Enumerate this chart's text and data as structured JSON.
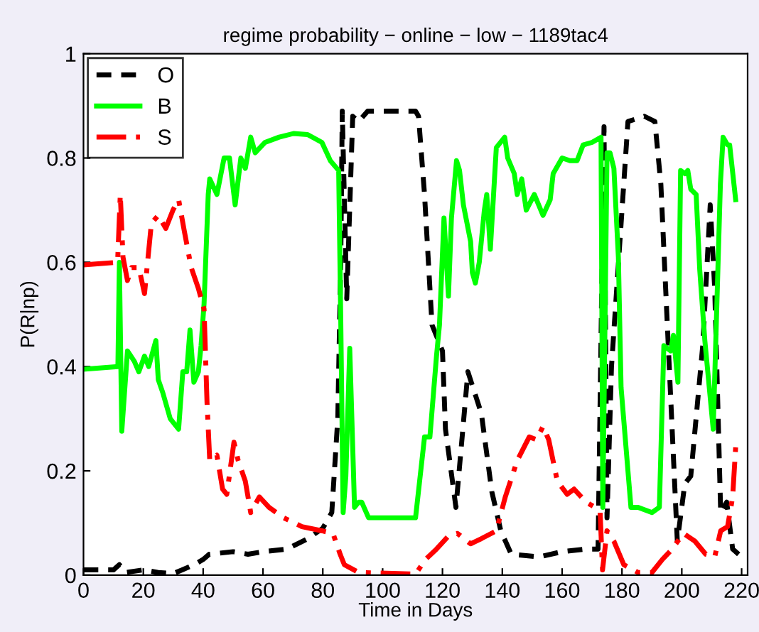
{
  "chart_data": {
    "type": "line",
    "title": "regime probability − online − low − 1189tac4",
    "xlabel": "Time in Days",
    "ylabel": "P(R|np)",
    "xlim": [
      0,
      222
    ],
    "ylim": [
      0,
      1
    ],
    "xticks": [
      0,
      20,
      40,
      60,
      80,
      100,
      120,
      140,
      160,
      180,
      200,
      220
    ],
    "yticks": [
      0,
      0.2,
      0.4,
      0.6,
      0.8,
      1
    ],
    "grid": false,
    "legend": "top left",
    "series": [
      {
        "name": "O",
        "color": "#000000",
        "line_style": "dashed",
        "x": [
          0,
          10,
          12,
          14,
          20,
          25,
          30,
          33,
          37,
          40,
          42,
          50,
          55,
          60,
          68,
          75,
          80,
          83,
          85,
          86,
          86.5,
          88,
          90,
          92,
          95,
          111,
          112,
          114,
          116.5,
          120,
          121,
          124.5,
          128.5,
          133,
          136.5,
          139.5,
          143,
          152.5,
          160,
          168,
          172,
          174,
          175,
          176.5,
          182,
          187.5,
          191,
          193,
          195,
          198.5,
          201,
          203,
          207,
          209.5,
          211,
          213,
          215,
          217,
          219
        ],
        "values": [
          0.01,
          0.01,
          0.02,
          0.005,
          0.01,
          0.005,
          0.003,
          0.01,
          0.02,
          0.03,
          0.04,
          0.045,
          0.04,
          0.045,
          0.05,
          0.07,
          0.09,
          0.12,
          0.3,
          0.6,
          0.89,
          0.53,
          0.88,
          0.87,
          0.89,
          0.89,
          0.88,
          0.73,
          0.48,
          0.43,
          0.28,
          0.13,
          0.39,
          0.31,
          0.16,
          0.085,
          0.04,
          0.035,
          0.045,
          0.05,
          0.05,
          0.86,
          0.11,
          0.4,
          0.87,
          0.88,
          0.87,
          0.75,
          0.5,
          0.065,
          0.175,
          0.19,
          0.44,
          0.71,
          0.55,
          0.12,
          0.14,
          0.05,
          0.04
        ]
      },
      {
        "name": "B",
        "color": "#00ff00",
        "line_style": "solid",
        "x": [
          0,
          11.5,
          12,
          12.8,
          14.7,
          17,
          18.5,
          20.4,
          21.8,
          24.2,
          25,
          26.5,
          29,
          31.8,
          33.2,
          34.5,
          35.6,
          36.9,
          38.4,
          39.3,
          40.3,
          41.7,
          42.2,
          44.6,
          47,
          48.8,
          50.7,
          52.6,
          54.1,
          55.9,
          57.4,
          60.7,
          65.4,
          70.2,
          74.9,
          79.7,
          82.5,
          85.3,
          86,
          86.8,
          87.7,
          89,
          90.6,
          92,
          93,
          95.3,
          111,
          114,
          115.8,
          118,
          119,
          120.5,
          122,
          123,
          124.7,
          125.7,
          127,
          129.4,
          130,
          131,
          132.3,
          134,
          134.8,
          136,
          138,
          140.8,
          141.8,
          144,
          145,
          146.5,
          148,
          150.7,
          153.6,
          156,
          157,
          160,
          162.6,
          165,
          167,
          170,
          173,
          173.6,
          175,
          176,
          177.3,
          178.8,
          179.7,
          183,
          185.4,
          190,
          192.5,
          194,
          196.3,
          197.2,
          198.7,
          199.6,
          201,
          202,
          203,
          204.8,
          206,
          207.7,
          210.5,
          212.9,
          213.8,
          215.3,
          216,
          218
        ],
        "values": [
          0.395,
          0.4,
          0.6,
          0.276,
          0.43,
          0.41,
          0.39,
          0.42,
          0.4,
          0.45,
          0.375,
          0.35,
          0.3,
          0.28,
          0.39,
          0.39,
          0.47,
          0.37,
          0.39,
          0.44,
          0.52,
          0.73,
          0.76,
          0.73,
          0.8,
          0.8,
          0.71,
          0.8,
          0.78,
          0.84,
          0.81,
          0.83,
          0.84,
          0.847,
          0.845,
          0.83,
          0.795,
          0.776,
          0.49,
          0.12,
          0.19,
          0.435,
          0.13,
          0.14,
          0.14,
          0.11,
          0.11,
          0.265,
          0.265,
          0.42,
          0.48,
          0.685,
          0.535,
          0.685,
          0.795,
          0.776,
          0.71,
          0.64,
          0.58,
          0.56,
          0.6,
          0.7,
          0.73,
          0.625,
          0.82,
          0.84,
          0.8,
          0.77,
          0.73,
          0.76,
          0.7,
          0.73,
          0.69,
          0.72,
          0.77,
          0.8,
          0.795,
          0.795,
          0.825,
          0.83,
          0.84,
          0.13,
          0.81,
          0.81,
          0.78,
          0.61,
          0.36,
          0.13,
          0.13,
          0.12,
          0.13,
          0.44,
          0.43,
          0.46,
          0.37,
          0.776,
          0.77,
          0.776,
          0.74,
          0.73,
          0.585,
          0.45,
          0.28,
          0.75,
          0.84,
          0.825,
          0.825,
          0.72
        ]
      },
      {
        "name": "S",
        "color": "#ff0000",
        "line_style": "dashdot",
        "x": [
          0,
          11.4,
          12.3,
          13.2,
          14.7,
          16.1,
          18.5,
          20.4,
          22.7,
          25,
          27.5,
          29.9,
          31.8,
          33.7,
          36,
          38.4,
          40.3,
          41.3,
          42.2,
          44.6,
          46.5,
          47.9,
          50.3,
          51.7,
          54.1,
          55.9,
          58.8,
          62,
          66.9,
          73,
          79.7,
          83.4,
          85.8,
          87.2,
          92,
          111,
          114.3,
          118,
          122,
          125,
          129.4,
          133,
          138,
          141,
          145,
          149,
          151.4,
          153.6,
          155.5,
          158.4,
          161.7,
          164,
          168,
          171,
          172.7,
          173.5,
          175,
          177.3,
          180.6,
          185.4,
          190,
          193.5,
          196.3,
          200.6,
          204.4,
          208,
          211,
          213,
          215.3,
          217,
          218
        ],
        "values": [
          0.595,
          0.6,
          0.73,
          0.61,
          0.565,
          0.59,
          0.59,
          0.54,
          0.675,
          0.69,
          0.665,
          0.7,
          0.72,
          0.66,
          0.59,
          0.55,
          0.51,
          0.33,
          0.22,
          0.23,
          0.165,
          0.155,
          0.255,
          0.22,
          0.18,
          0.12,
          0.15,
          0.13,
          0.11,
          0.093,
          0.085,
          0.08,
          0.04,
          0.02,
          0.005,
          0.002,
          0.03,
          0.05,
          0.075,
          0.08,
          0.06,
          0.07,
          0.085,
          0.15,
          0.22,
          0.265,
          0.26,
          0.285,
          0.26,
          0.18,
          0.155,
          0.165,
          0.14,
          0.13,
          0.12,
          0.01,
          0.085,
          0.065,
          0.02,
          0.005,
          0.005,
          0.03,
          0.047,
          0.08,
          0.065,
          0.04,
          0.035,
          0.085,
          0.093,
          0.15,
          0.245
        ]
      }
    ]
  }
}
